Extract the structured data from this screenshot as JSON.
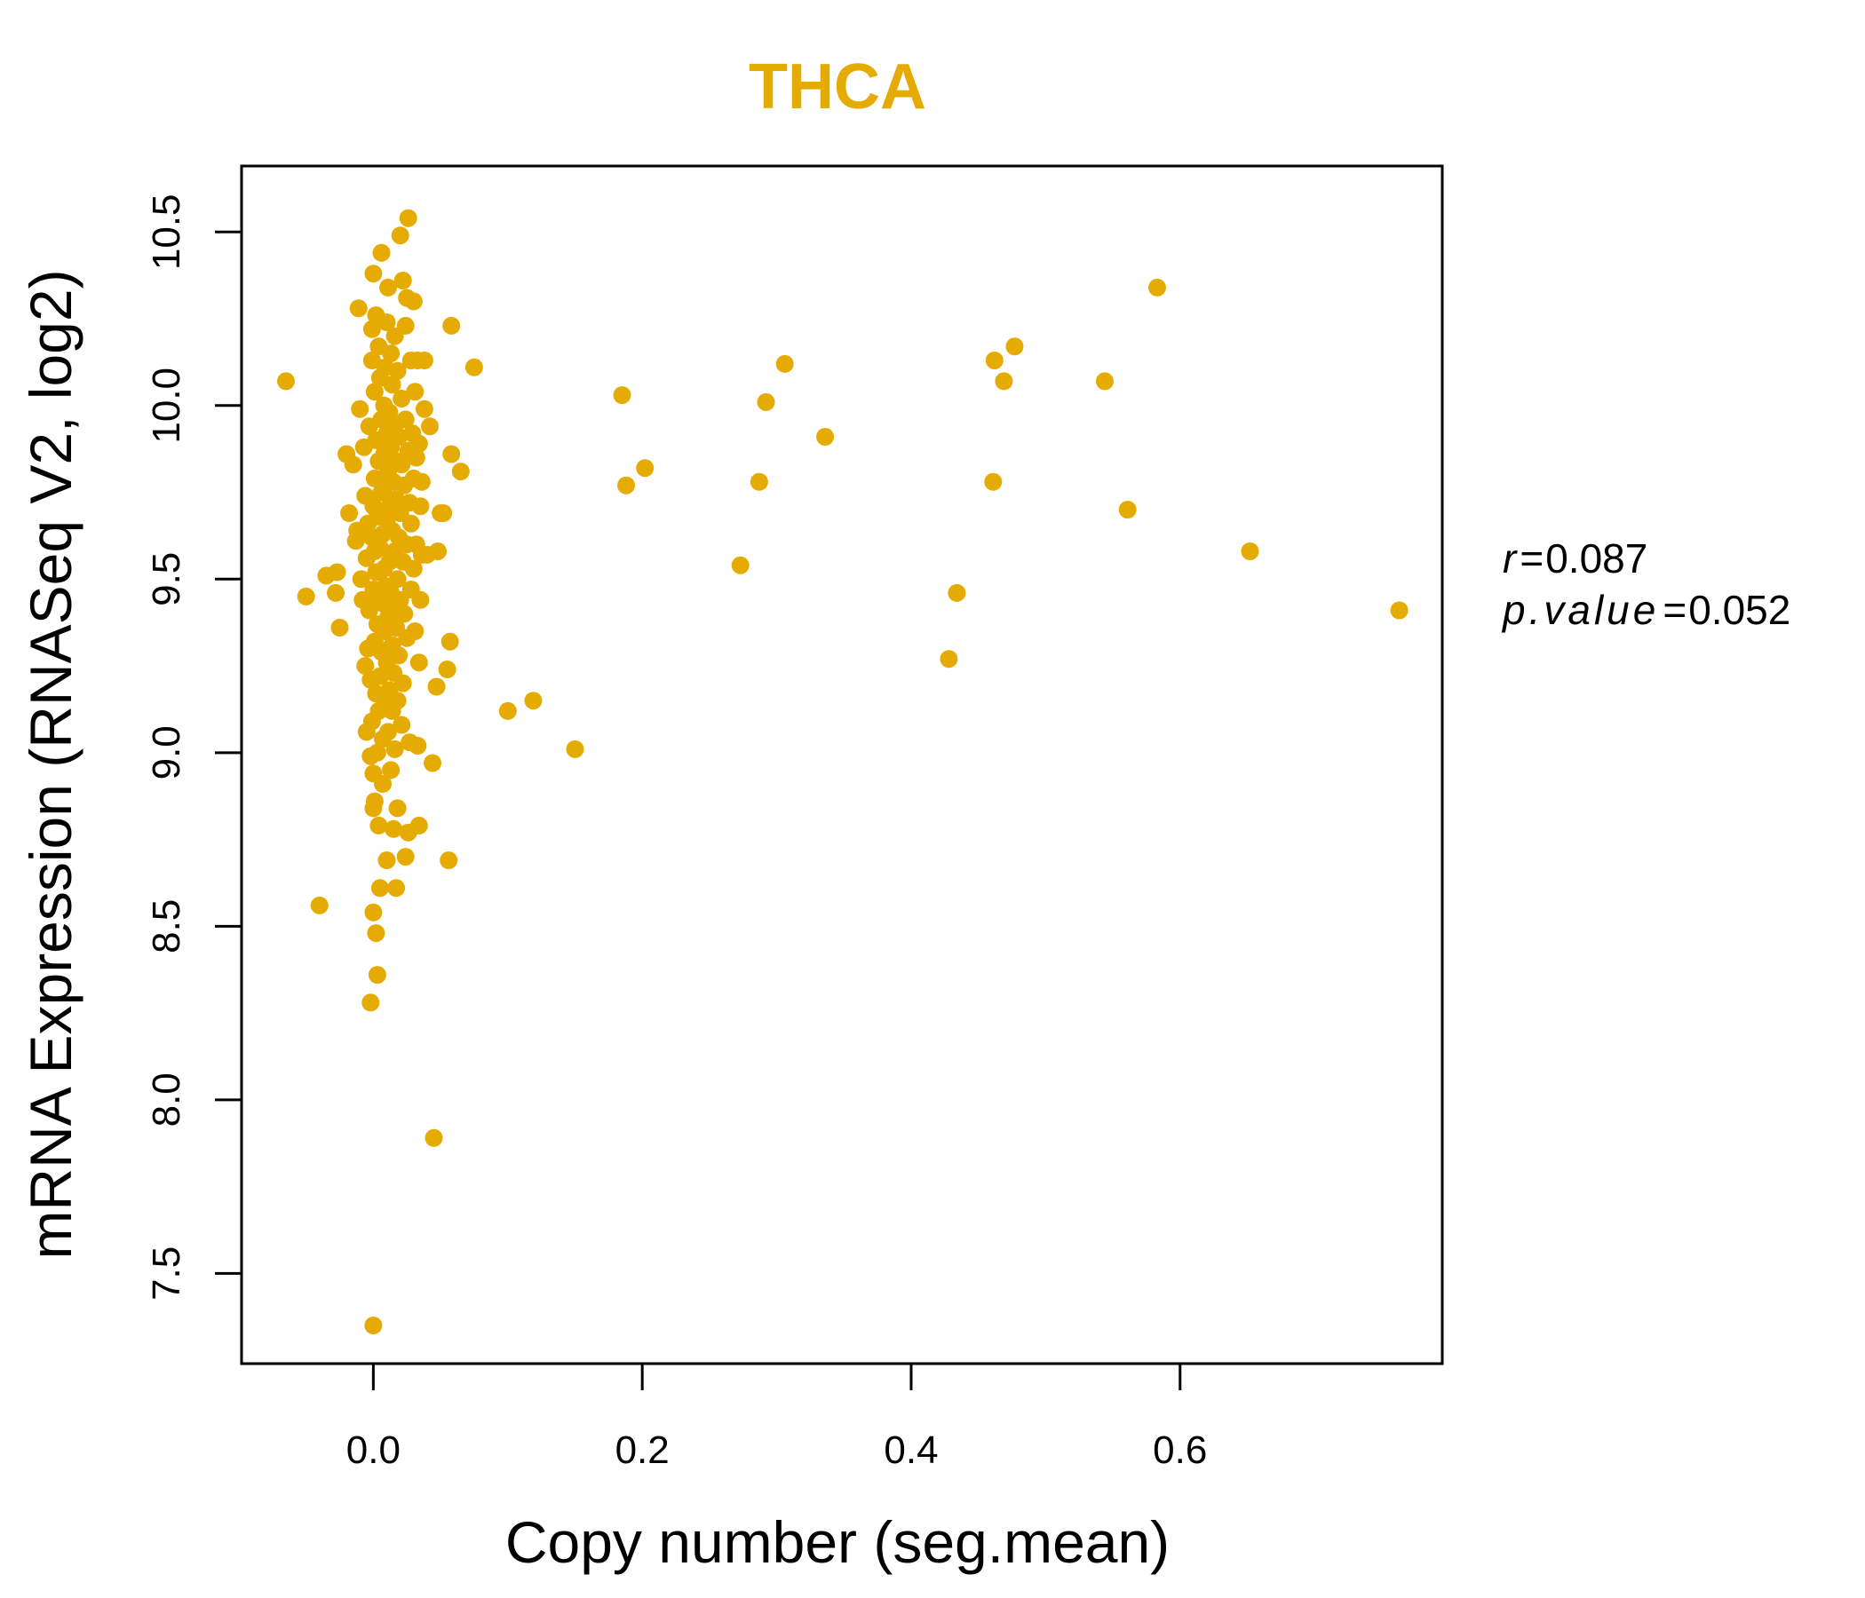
{
  "chart_data": {
    "type": "scatter",
    "title": "THCA",
    "xlabel": "Copy number (seg.mean)",
    "ylabel": "mRNA Expression (RNASeq V2, log2)",
    "xlim": [
      -0.098,
      0.795
    ],
    "ylim": [
      7.24,
      10.69
    ],
    "x_ticks": [
      "0.0",
      "0.2",
      "0.4",
      "0.6"
    ],
    "x_tick_values": [
      0,
      0.2,
      0.4,
      0.6
    ],
    "y_ticks": [
      "7.5",
      "8.0",
      "8.5",
      "9.0",
      "9.5",
      "10.0",
      "10.5"
    ],
    "y_tick_values": [
      7.5,
      8.0,
      8.5,
      9.0,
      9.5,
      10.0,
      10.5
    ],
    "grid": false,
    "legend": "none",
    "point_color": "#E6AB02",
    "annotations": {
      "r_label": "r",
      "r_value": "0.087",
      "p_label": "p.value",
      "p_value": "0.052"
    },
    "points": [
      [
        -0.065,
        10.07
      ],
      [
        -0.05,
        9.45
      ],
      [
        -0.04,
        8.56
      ],
      [
        -0.035,
        9.51
      ],
      [
        -0.028,
        9.46
      ],
      [
        -0.027,
        9.52
      ],
      [
        -0.025,
        9.36
      ],
      [
        -0.02,
        9.86
      ],
      [
        -0.018,
        9.69
      ],
      [
        -0.015,
        9.83
      ],
      [
        -0.013,
        9.61
      ],
      [
        -0.012,
        9.64
      ],
      [
        -0.011,
        10.28
      ],
      [
        -0.01,
        9.99
      ],
      [
        -0.009,
        9.5
      ],
      [
        -0.008,
        9.44
      ],
      [
        -0.007,
        9.88
      ],
      [
        -0.006,
        9.74
      ],
      [
        -0.006,
        9.25
      ],
      [
        -0.005,
        9.06
      ],
      [
        -0.005,
        9.56
      ],
      [
        -0.004,
        9.3
      ],
      [
        -0.004,
        9.66
      ],
      [
        -0.003,
        9.41
      ],
      [
        -0.003,
        9.94
      ],
      [
        -0.002,
        9.21
      ],
      [
        -0.002,
        8.99
      ],
      [
        -0.002,
        8.28
      ],
      [
        -0.001,
        9.62
      ],
      [
        -0.001,
        9.09
      ],
      [
        -0.001,
        10.13
      ],
      [
        -0.001,
        10.22
      ],
      [
        0.0,
        9.71
      ],
      [
        0.0,
        9.47
      ],
      [
        0.0,
        8.94
      ],
      [
        0.0,
        8.84
      ],
      [
        0.0,
        8.54
      ],
      [
        0.0,
        7.35
      ],
      [
        0.0,
        10.38
      ],
      [
        0.001,
        9.32
      ],
      [
        0.001,
        9.79
      ],
      [
        0.001,
        9.58
      ],
      [
        0.001,
        8.86
      ],
      [
        0.001,
        10.04
      ],
      [
        0.002,
        9.17
      ],
      [
        0.002,
        9.52
      ],
      [
        0.002,
        9.9
      ],
      [
        0.002,
        10.26
      ],
      [
        0.002,
        8.48
      ],
      [
        0.003,
        8.36
      ],
      [
        0.003,
        9.0
      ],
      [
        0.003,
        9.68
      ],
      [
        0.003,
        9.37
      ],
      [
        0.004,
        9.12
      ],
      [
        0.004,
        9.84
      ],
      [
        0.004,
        9.45
      ],
      [
        0.004,
        10.17
      ],
      [
        0.004,
        8.79
      ],
      [
        0.005,
        9.59
      ],
      [
        0.005,
        9.22
      ],
      [
        0.005,
        10.08
      ],
      [
        0.005,
        8.61
      ],
      [
        0.006,
        9.96
      ],
      [
        0.006,
        9.29
      ],
      [
        0.006,
        9.75
      ],
      [
        0.006,
        10.44
      ],
      [
        0.007,
        9.43
      ],
      [
        0.007,
        9.04
      ],
      [
        0.007,
        9.63
      ],
      [
        0.007,
        8.91
      ],
      [
        0.008,
        9.86
      ],
      [
        0.008,
        9.53
      ],
      [
        0.008,
        10.0
      ],
      [
        0.008,
        9.35
      ],
      [
        0.009,
        9.14
      ],
      [
        0.009,
        9.77
      ],
      [
        0.009,
        10.11
      ],
      [
        0.009,
        9.48
      ],
      [
        0.01,
        9.26
      ],
      [
        0.01,
        9.92
      ],
      [
        0.01,
        8.69
      ],
      [
        0.01,
        9.67
      ],
      [
        0.01,
        10.24
      ],
      [
        0.011,
        9.39
      ],
      [
        0.011,
        9.81
      ],
      [
        0.011,
        9.06
      ],
      [
        0.011,
        10.34
      ],
      [
        0.012,
        9.55
      ],
      [
        0.012,
        9.18
      ],
      [
        0.012,
        9.71
      ],
      [
        0.012,
        9.98
      ],
      [
        0.013,
        8.95
      ],
      [
        0.013,
        9.46
      ],
      [
        0.013,
        9.88
      ],
      [
        0.013,
        10.15
      ],
      [
        0.014,
        9.31
      ],
      [
        0.014,
        9.64
      ],
      [
        0.014,
        9.12
      ],
      [
        0.014,
        10.06
      ],
      [
        0.015,
        9.78
      ],
      [
        0.015,
        9.42
      ],
      [
        0.015,
        9.23
      ],
      [
        0.015,
        8.78
      ],
      [
        0.016,
        9.94
      ],
      [
        0.016,
        9.58
      ],
      [
        0.016,
        10.2
      ],
      [
        0.016,
        9.01
      ],
      [
        0.017,
        9.73
      ],
      [
        0.017,
        9.36
      ],
      [
        0.017,
        8.61
      ],
      [
        0.017,
        9.84
      ],
      [
        0.018,
        9.5
      ],
      [
        0.018,
        10.1
      ],
      [
        0.018,
        9.15
      ],
      [
        0.018,
        8.84
      ],
      [
        0.019,
        9.62
      ],
      [
        0.019,
        9.91
      ],
      [
        0.019,
        9.28
      ],
      [
        0.02,
        10.49
      ],
      [
        0.02,
        9.69
      ],
      [
        0.02,
        9.44
      ],
      [
        0.021,
        9.08
      ],
      [
        0.021,
        10.02
      ],
      [
        0.021,
        9.83
      ],
      [
        0.022,
        10.36
      ],
      [
        0.022,
        9.55
      ],
      [
        0.022,
        9.2
      ],
      [
        0.023,
        9.77
      ],
      [
        0.023,
        9.4
      ],
      [
        0.024,
        10.23
      ],
      [
        0.024,
        9.96
      ],
      [
        0.024,
        8.7
      ],
      [
        0.025,
        9.6
      ],
      [
        0.025,
        9.33
      ],
      [
        0.025,
        10.31
      ],
      [
        0.026,
        10.54
      ],
      [
        0.026,
        9.87
      ],
      [
        0.026,
        8.77
      ],
      [
        0.027,
        9.03
      ],
      [
        0.027,
        9.72
      ],
      [
        0.028,
        10.13
      ],
      [
        0.028,
        9.47
      ],
      [
        0.028,
        9.66
      ],
      [
        0.029,
        9.92
      ],
      [
        0.03,
        10.3
      ],
      [
        0.03,
        9.79
      ],
      [
        0.03,
        9.53
      ],
      [
        0.031,
        9.35
      ],
      [
        0.031,
        10.04
      ],
      [
        0.032,
        9.85
      ],
      [
        0.032,
        9.6
      ],
      [
        0.033,
        9.02
      ],
      [
        0.033,
        10.13
      ],
      [
        0.034,
        9.89
      ],
      [
        0.034,
        9.26
      ],
      [
        0.034,
        8.79
      ],
      [
        0.035,
        9.71
      ],
      [
        0.035,
        9.44
      ],
      [
        0.036,
        9.78
      ],
      [
        0.036,
        9.57
      ],
      [
        0.038,
        10.13
      ],
      [
        0.038,
        9.99
      ],
      [
        0.04,
        9.57
      ],
      [
        0.042,
        9.94
      ],
      [
        0.044,
        8.97
      ],
      [
        0.045,
        7.89
      ],
      [
        0.047,
        9.19
      ],
      [
        0.048,
        9.58
      ],
      [
        0.05,
        9.69
      ],
      [
        0.052,
        9.69
      ],
      [
        0.055,
        9.24
      ],
      [
        0.056,
        8.69
      ],
      [
        0.057,
        9.32
      ],
      [
        0.058,
        9.86
      ],
      [
        0.058,
        10.23
      ],
      [
        0.065,
        9.81
      ],
      [
        0.075,
        10.11
      ],
      [
        0.1,
        9.12
      ],
      [
        0.119,
        9.15
      ],
      [
        0.15,
        9.01
      ],
      [
        0.185,
        10.03
      ],
      [
        0.188,
        9.77
      ],
      [
        0.202,
        9.82
      ],
      [
        0.273,
        9.54
      ],
      [
        0.287,
        9.78
      ],
      [
        0.292,
        10.01
      ],
      [
        0.306,
        10.12
      ],
      [
        0.336,
        9.91
      ],
      [
        0.428,
        9.27
      ],
      [
        0.434,
        9.46
      ],
      [
        0.461,
        9.78
      ],
      [
        0.462,
        10.13
      ],
      [
        0.469,
        10.07
      ],
      [
        0.477,
        10.17
      ],
      [
        0.544,
        10.07
      ],
      [
        0.561,
        9.7
      ],
      [
        0.583,
        10.34
      ],
      [
        0.652,
        9.58
      ],
      [
        0.763,
        9.41
      ]
    ]
  }
}
